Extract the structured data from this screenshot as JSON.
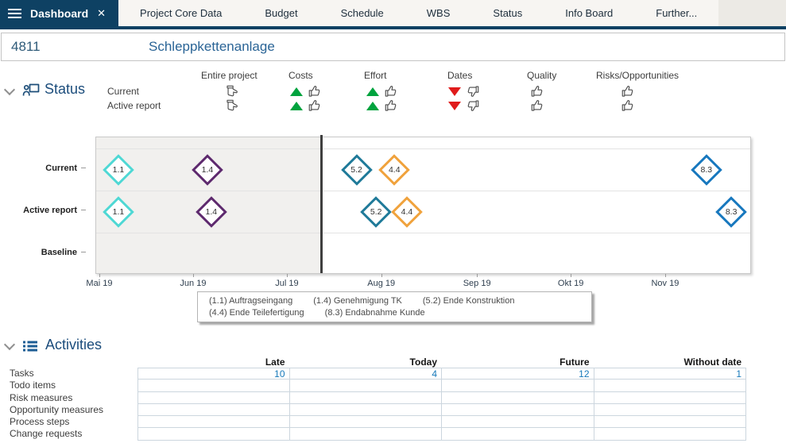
{
  "colors": {
    "navy": "#0e4163",
    "accent_blue": "#1779ba",
    "title_blue": "#1c4d7c",
    "trend_green": "#00a33e",
    "trend_red": "#e01b1b"
  },
  "tab_bar": {
    "active_tab": "Dashboard",
    "tabs": [
      "Project Core Data",
      "Budget",
      "Schedule",
      "WBS",
      "Status",
      "Info Board",
      "Further..."
    ]
  },
  "project_header": {
    "id": "4811",
    "name": "Schleppkettenanlage"
  },
  "status_section": {
    "title": "Status",
    "row_labels": [
      "Current",
      "Active report"
    ],
    "columns": [
      {
        "label": "Entire project",
        "cells": [
          {
            "trend": null,
            "thumb": "neutral"
          },
          {
            "trend": null,
            "thumb": "neutral"
          }
        ]
      },
      {
        "label": "Costs",
        "cells": [
          {
            "trend": "up",
            "thumb": "up"
          },
          {
            "trend": "up",
            "thumb": "up"
          }
        ]
      },
      {
        "label": "Effort",
        "cells": [
          {
            "trend": "up",
            "thumb": "up"
          },
          {
            "trend": "up",
            "thumb": "up"
          }
        ]
      },
      {
        "label": "Dates",
        "cells": [
          {
            "trend": "down",
            "thumb": "down"
          },
          {
            "trend": "down",
            "thumb": "down"
          }
        ]
      },
      {
        "label": "Quality",
        "cells": [
          {
            "trend": null,
            "thumb": "up"
          },
          {
            "trend": null,
            "thumb": "up"
          }
        ]
      },
      {
        "label": "Risks/Opportunities",
        "cells": [
          {
            "trend": null,
            "thumb": "up"
          },
          {
            "trend": null,
            "thumb": "up"
          }
        ]
      }
    ]
  },
  "chart_data": {
    "type": "milestone-timeline",
    "x_axis": {
      "ticks": [
        "Mai 19",
        "Jun 19",
        "Jul 19",
        "Aug 19",
        "Sep 19",
        "Okt 19",
        "Nov 19"
      ],
      "tick_pct": [
        0.6,
        14.9,
        29.2,
        43.6,
        58.2,
        72.5,
        86.9
      ]
    },
    "today_line": {
      "x_pct": 34.4,
      "approx_date": "2019-07-12"
    },
    "rows": [
      {
        "label": "Current",
        "milestones": [
          {
            "id": "1.1",
            "x_pct": 3.4,
            "approx_date": "2019-05-07"
          },
          {
            "id": "1.4",
            "x_pct": 17.0,
            "approx_date": "2019-06-04"
          },
          {
            "id": "5.2",
            "x_pct": 39.8,
            "approx_date": "2019-07-22"
          },
          {
            "id": "4.4",
            "x_pct": 45.6,
            "approx_date": "2019-08-04"
          },
          {
            "id": "8.3",
            "x_pct": 93.3,
            "approx_date": "2019-11-14"
          }
        ]
      },
      {
        "label": "Active report",
        "milestones": [
          {
            "id": "1.1",
            "x_pct": 3.4,
            "approx_date": "2019-05-07"
          },
          {
            "id": "1.4",
            "x_pct": 17.6,
            "approx_date": "2019-06-06"
          },
          {
            "id": "5.2",
            "x_pct": 42.8,
            "approx_date": "2019-07-29"
          },
          {
            "id": "4.4",
            "x_pct": 47.5,
            "approx_date": "2019-08-08"
          },
          {
            "id": "8.3",
            "x_pct": 97.1,
            "approx_date": "2019-11-22"
          }
        ]
      },
      {
        "label": "Baseline",
        "milestones": []
      }
    ],
    "legend": [
      {
        "id": "1.1",
        "name": "Auftragseingang",
        "color": "#4fd8d4"
      },
      {
        "id": "1.4",
        "name": "Genehmigung TK",
        "color": "#5e2a6e"
      },
      {
        "id": "5.2",
        "name": "Ende Konstruktion",
        "color": "#1f7a99"
      },
      {
        "id": "4.4",
        "name": "Ende Teilefertigung",
        "color": "#f0a23c"
      },
      {
        "id": "8.3",
        "name": "Endabnahme Kunde",
        "color": "#1878be"
      }
    ]
  },
  "activities_section": {
    "title": "Activities",
    "columns": [
      "Late",
      "Today",
      "Future",
      "Without date"
    ],
    "rows": [
      {
        "label": "Tasks",
        "values": [
          "10",
          "4",
          "12",
          "1"
        ]
      },
      {
        "label": "Todo items",
        "values": [
          "",
          "",
          "",
          ""
        ]
      },
      {
        "label": "Risk measures",
        "values": [
          "",
          "",
          "",
          ""
        ]
      },
      {
        "label": "Opportunity measures",
        "values": [
          "",
          "",
          "",
          ""
        ]
      },
      {
        "label": "Process steps",
        "values": [
          "",
          "",
          "",
          ""
        ]
      },
      {
        "label": "Change requests",
        "values": [
          "",
          "",
          "",
          ""
        ]
      }
    ]
  }
}
